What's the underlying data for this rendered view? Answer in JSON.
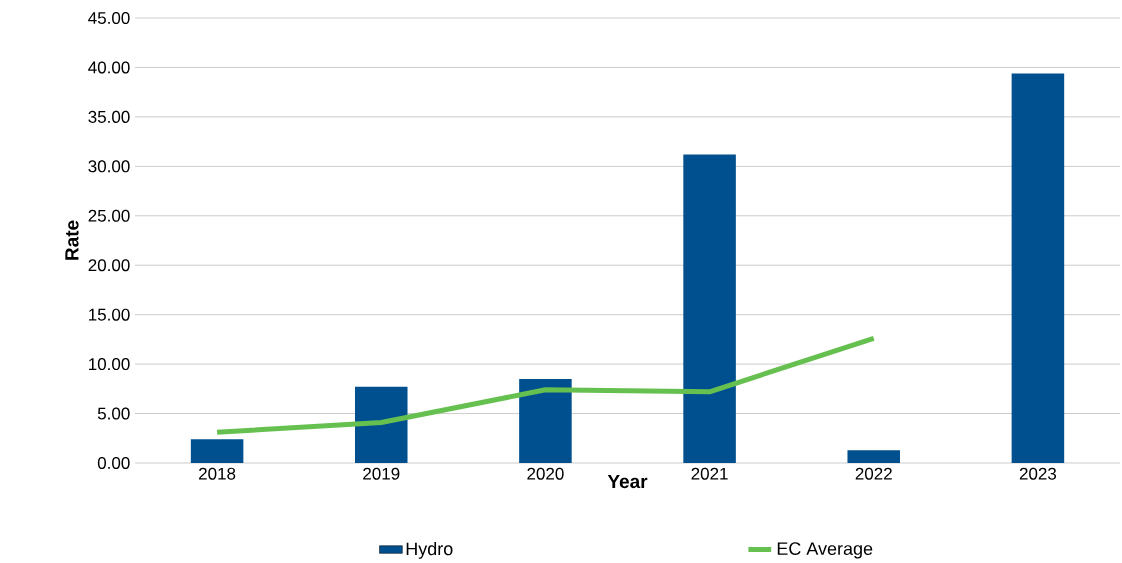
{
  "chart_data": {
    "type": "bar",
    "xlabel": "Year",
    "ylabel": "Rate",
    "categories": [
      "2018",
      "2019",
      "2020",
      "2021",
      "2022",
      "2023"
    ],
    "series": [
      {
        "name": "Hydro",
        "color": "#00508f",
        "values": [
          2.4,
          7.7,
          8.5,
          31.2,
          1.3,
          39.4
        ]
      },
      {
        "name": "EC Average",
        "type": "line",
        "color": "#66c050",
        "values": [
          3.1,
          4.1,
          7.4,
          7.2,
          12.6,
          null
        ]
      }
    ],
    "ylim": [
      0,
      45
    ],
    "yticks": [
      {
        "value": 0,
        "label": "0.00"
      },
      {
        "value": 5,
        "label": "5.00"
      },
      {
        "value": 10,
        "label": "10.00"
      },
      {
        "value": 15,
        "label": "15.00"
      },
      {
        "value": 20,
        "label": "20.00"
      },
      {
        "value": 25,
        "label": "25.00"
      },
      {
        "value": 30,
        "label": "30.00"
      },
      {
        "value": 35,
        "label": "35.00"
      },
      {
        "value": 40,
        "label": "40.00"
      },
      {
        "value": 45,
        "label": "45.00"
      }
    ],
    "grid": "y",
    "legend": "bottom"
  }
}
